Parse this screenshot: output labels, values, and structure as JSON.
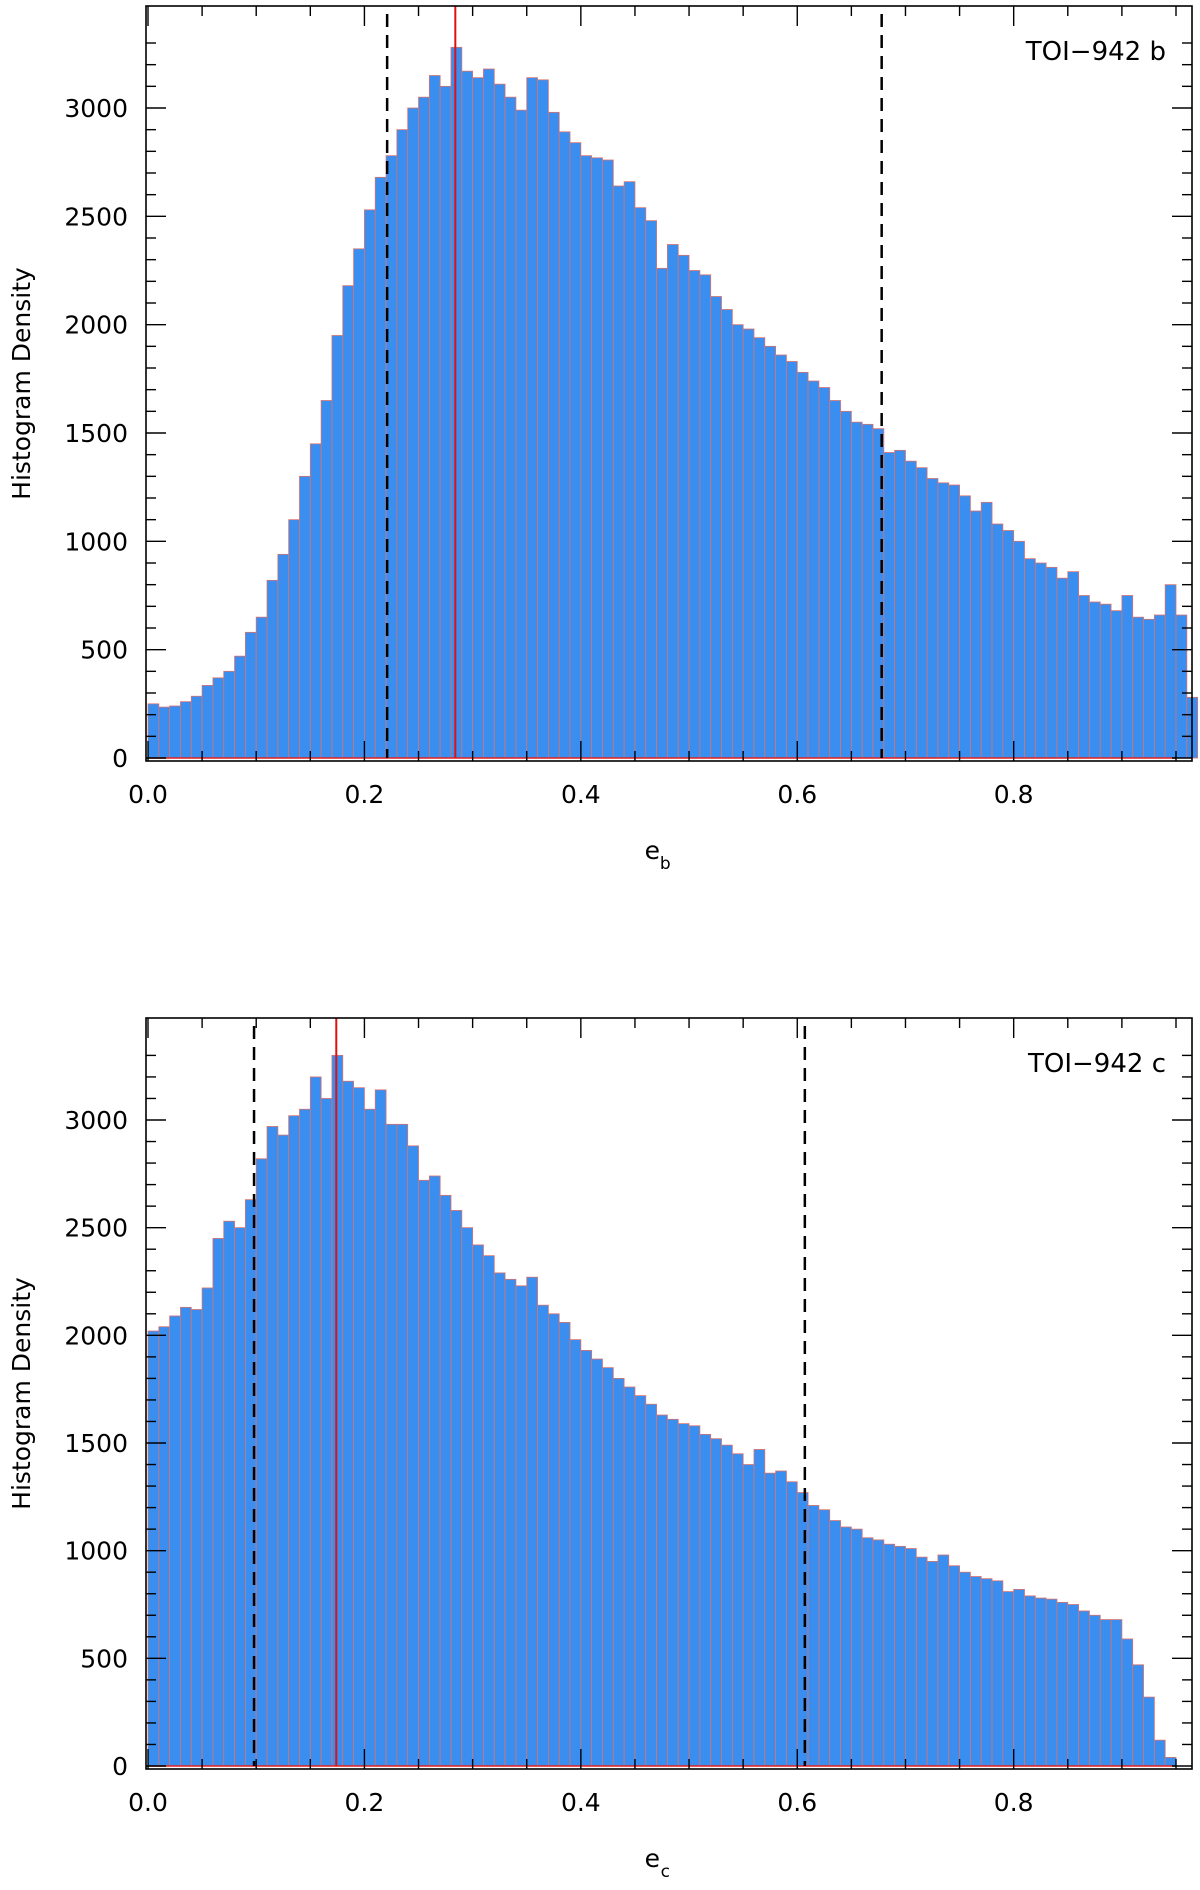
{
  "chart_data": [
    {
      "type": "bar",
      "title": "",
      "annotation": "TOI−942 b",
      "xlabel": "e",
      "xlabel_subscript": "b",
      "ylabel": "Histogram Density",
      "xlim": [
        0.0,
        0.95
      ],
      "ylim": [
        0,
        3300
      ],
      "bin_width": 0.01,
      "x_start": 0.0,
      "xticks": [
        "0.0",
        "0.2",
        "0.4",
        "0.6",
        "0.8"
      ],
      "xtick_values": [
        0.0,
        0.2,
        0.4,
        0.6,
        0.8
      ],
      "yticks": [
        "0",
        "500",
        "1000",
        "1500",
        "2000",
        "2500",
        "3000"
      ],
      "ytick_values": [
        0,
        500,
        1000,
        1500,
        2000,
        2500,
        3000
      ],
      "median_line": 0.284,
      "interval_lines": [
        0.221,
        0.678
      ],
      "values": [
        250,
        235,
        240,
        260,
        285,
        335,
        370,
        400,
        470,
        580,
        650,
        820,
        940,
        1100,
        1300,
        1450,
        1650,
        1950,
        2180,
        2350,
        2530,
        2680,
        2780,
        2900,
        3000,
        3050,
        3150,
        3100,
        3280,
        3170,
        3140,
        3180,
        3110,
        3050,
        2990,
        3140,
        3130,
        2980,
        2890,
        2840,
        2780,
        2770,
        2760,
        2640,
        2660,
        2540,
        2480,
        2260,
        2370,
        2320,
        2250,
        2230,
        2130,
        2070,
        2000,
        1980,
        1940,
        1900,
        1860,
        1830,
        1780,
        1740,
        1710,
        1650,
        1600,
        1550,
        1540,
        1520,
        1410,
        1420,
        1370,
        1340,
        1290,
        1270,
        1260,
        1210,
        1140,
        1180,
        1080,
        1050,
        1000,
        920,
        900,
        880,
        830,
        860,
        750,
        720,
        710,
        680,
        750,
        650,
        640,
        660,
        800,
        660,
        280
      ]
    },
    {
      "type": "bar",
      "title": "",
      "annotation": "TOI−942 c",
      "xlabel": "e",
      "xlabel_subscript": "c",
      "ylabel": "Histogram Density",
      "xlim": [
        0.0,
        0.95
      ],
      "ylim": [
        0,
        3300
      ],
      "bin_width": 0.01,
      "x_start": 0.0,
      "xticks": [
        "0.0",
        "0.2",
        "0.4",
        "0.6",
        "0.8"
      ],
      "xtick_values": [
        0.0,
        0.2,
        0.4,
        0.6,
        0.8
      ],
      "yticks": [
        "0",
        "500",
        "1000",
        "1500",
        "2000",
        "2500",
        "3000"
      ],
      "ytick_values": [
        0,
        500,
        1000,
        1500,
        2000,
        2500,
        3000
      ],
      "median_line": 0.174,
      "interval_lines": [
        0.098,
        0.607
      ],
      "values": [
        2020,
        2040,
        2090,
        2130,
        2120,
        2220,
        2450,
        2530,
        2500,
        2630,
        2820,
        2970,
        2930,
        3020,
        3050,
        3200,
        3100,
        3300,
        3180,
        3150,
        3050,
        3140,
        2980,
        2980,
        2880,
        2720,
        2740,
        2650,
        2580,
        2500,
        2420,
        2370,
        2290,
        2260,
        2230,
        2270,
        2140,
        2100,
        2060,
        1980,
        1930,
        1890,
        1850,
        1800,
        1760,
        1720,
        1680,
        1630,
        1610,
        1590,
        1580,
        1540,
        1520,
        1490,
        1450,
        1400,
        1470,
        1360,
        1370,
        1320,
        1270,
        1210,
        1190,
        1140,
        1110,
        1100,
        1060,
        1050,
        1030,
        1020,
        1010,
        970,
        950,
        980,
        930,
        900,
        880,
        870,
        860,
        810,
        820,
        790,
        780,
        775,
        760,
        750,
        720,
        700,
        680,
        680,
        590,
        470,
        320,
        120,
        40
      ]
    }
  ]
}
